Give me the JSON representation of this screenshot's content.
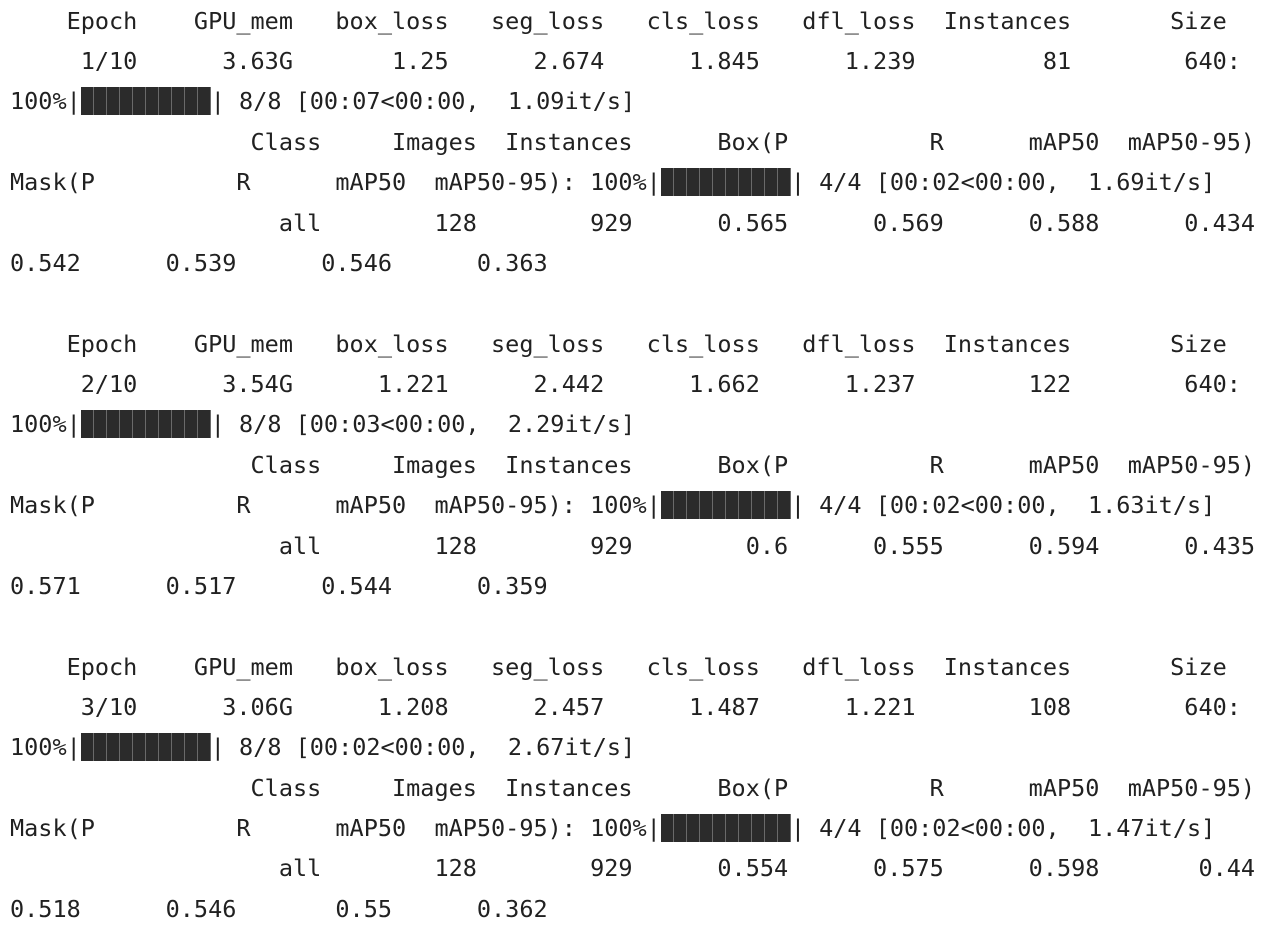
{
  "epochs": [
    {
      "header": "    Epoch    GPU_mem   box_loss   seg_loss   cls_loss   dfl_loss  Instances       Size",
      "stats": "     1/10      3.63G       1.25      2.674      1.845      1.239         81        640:",
      "train_progress": {
        "prefix": "100%|",
        "suffix": "| 8/8 [00:07<00:00,  1.09it/s]",
        "fraction": 1.0
      },
      "val_header": "                 Class     Images  Instances      Box(P          R      mAP50  mAP50-95)",
      "val_progress": {
        "prefix": "Mask(P          R      mAP50  mAP50-95): 100%|",
        "suffix": "| 4/4 [00:02<00:00,  1.69it/s]",
        "fraction": 1.0
      },
      "val_all": "                   all        128        929      0.565      0.569      0.588      0.434",
      "mask_metrics": "0.542      0.539      0.546      0.363"
    },
    {
      "header": "    Epoch    GPU_mem   box_loss   seg_loss   cls_loss   dfl_loss  Instances       Size",
      "stats": "     2/10      3.54G      1.221      2.442      1.662      1.237        122        640:",
      "train_progress": {
        "prefix": "100%|",
        "suffix": "| 8/8 [00:03<00:00,  2.29it/s]",
        "fraction": 1.0
      },
      "val_header": "                 Class     Images  Instances      Box(P          R      mAP50  mAP50-95)",
      "val_progress": {
        "prefix": "Mask(P          R      mAP50  mAP50-95): 100%|",
        "suffix": "| 4/4 [00:02<00:00,  1.63it/s]",
        "fraction": 1.0
      },
      "val_all": "                   all        128        929        0.6      0.555      0.594      0.435",
      "mask_metrics": "0.571      0.517      0.544      0.359"
    },
    {
      "header": "    Epoch    GPU_mem   box_loss   seg_loss   cls_loss   dfl_loss  Instances       Size",
      "stats": "     3/10      3.06G      1.208      2.457      1.487      1.221        108        640:",
      "train_progress": {
        "prefix": "100%|",
        "suffix": "| 8/8 [00:02<00:00,  2.67it/s]",
        "fraction": 1.0
      },
      "val_header": "                 Class     Images  Instances      Box(P          R      mAP50  mAP50-95)",
      "val_progress": {
        "prefix": "Mask(P          R      mAP50  mAP50-95): 100%|",
        "suffix": "| 4/4 [00:02<00:00,  1.47it/s]",
        "fraction": 1.0
      },
      "val_all": "                   all        128        929      0.554      0.575      0.598       0.44",
      "mask_metrics": "0.518      0.546       0.55      0.362"
    }
  ]
}
